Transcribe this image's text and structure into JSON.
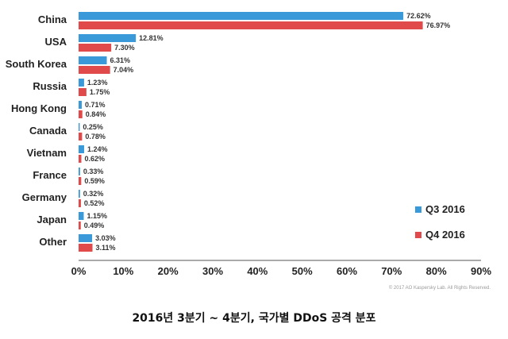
{
  "chart_data": {
    "type": "bar",
    "orientation": "horizontal",
    "categories": [
      "China",
      "USA",
      "South Korea",
      "Russia",
      "Hong Kong",
      "Canada",
      "Vietnam",
      "France",
      "Germany",
      "Japan",
      "Other"
    ],
    "series": [
      {
        "name": "Q3 2016",
        "color": "#3a9ad9",
        "values": [
          72.62,
          12.81,
          6.31,
          1.23,
          0.71,
          0.25,
          1.24,
          0.33,
          0.32,
          1.15,
          3.03
        ],
        "labels": [
          "72.62%",
          "12.81%",
          "6.31%",
          "1.23%",
          "0.71%",
          "0.25%",
          "1.24%",
          "0.33%",
          "0.32%",
          "1.15%",
          "3.03%"
        ]
      },
      {
        "name": "Q4 2016",
        "color": "#e04a4a",
        "values": [
          76.97,
          7.3,
          7.04,
          1.75,
          0.84,
          0.78,
          0.62,
          0.59,
          0.52,
          0.49,
          3.11
        ],
        "labels": [
          "76.97%",
          "7.30%",
          "7.04%",
          "1.75%",
          "0.84%",
          "0.78%",
          "0.62%",
          "0.59%",
          "0.52%",
          "0.49%",
          "3.11%"
        ]
      }
    ],
    "xlim": [
      0,
      90
    ],
    "ticks": [
      0,
      10,
      20,
      30,
      40,
      50,
      60,
      70,
      80,
      90
    ],
    "tick_labels": [
      "0%",
      "10%",
      "20%",
      "30%",
      "40%",
      "50%",
      "60%",
      "70%",
      "80%",
      "90%"
    ],
    "legend_position": "bottom-right",
    "grid": false
  },
  "copyright": "© 2017 AO Kaspersky Lab. All Rights Reserved.",
  "caption": "2016년 3분기 ~ 4분기, 국가별 DDoS 공격 분포"
}
